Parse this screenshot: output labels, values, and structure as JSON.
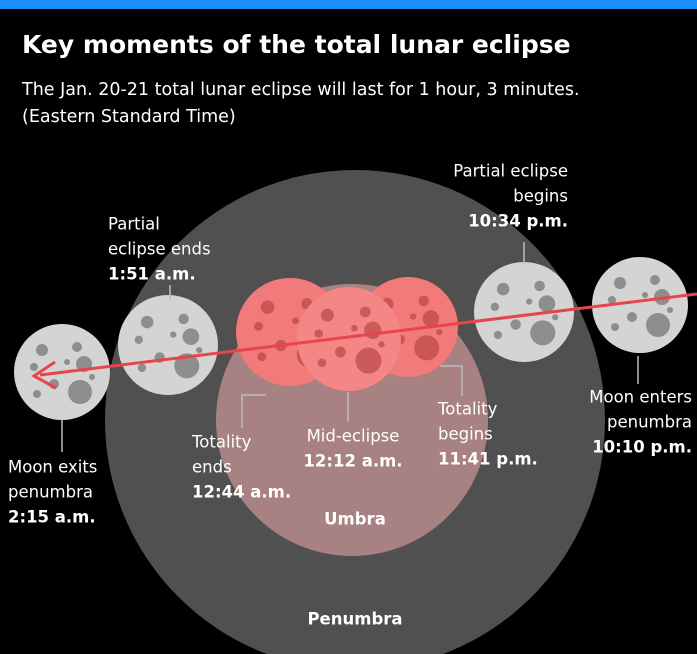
{
  "header": {
    "title": "Key moments of the total lunar eclipse",
    "subtitle": [
      "The Jan. 20-21 total lunar eclipse will last for 1 hour, 3 minutes.",
      "(Eastern Standard Time)"
    ]
  },
  "regions": [
    "Umbra",
    "Penumbra"
  ],
  "labels": [
    {
      "lines": [
        "Moon exits",
        "penumbra"
      ],
      "time": "2:15 a.m."
    },
    {
      "lines": [
        "Partial",
        "eclipse ends"
      ],
      "time": "1:51 a.m."
    },
    {
      "lines": [
        "Totality",
        "ends"
      ],
      "time": "12:44 a.m."
    },
    {
      "lines": [
        "Mid-eclipse"
      ],
      "time": "12:12 a.m."
    },
    {
      "lines": [
        "Totality",
        "begins"
      ],
      "time": "11:41 p.m."
    },
    {
      "lines": [
        "Partial eclipse",
        "begins"
      ],
      "time": "10:34 p.m."
    },
    {
      "lines": [
        "Moon enters",
        "penumbra"
      ],
      "time": "10:10 p.m."
    }
  ]
}
